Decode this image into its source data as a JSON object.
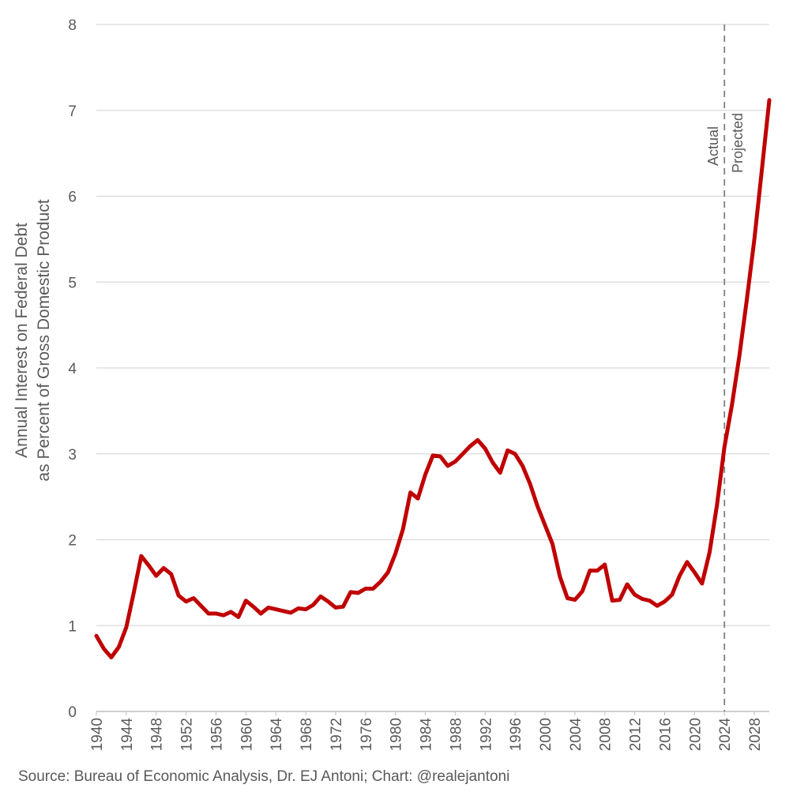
{
  "chart_data": {
    "type": "line",
    "ylabel_line1": "Annual Interest on Federal Debt",
    "ylabel_line2": "as Percent of Gross Domestic Product",
    "ylim": [
      0,
      8
    ],
    "xlim": [
      1940,
      2030
    ],
    "y_ticks": [
      "0",
      "1",
      "2",
      "3",
      "4",
      "5",
      "6",
      "7",
      "8"
    ],
    "x_ticks": [
      "1940",
      "1944",
      "1948",
      "1952",
      "1956",
      "1960",
      "1964",
      "1968",
      "1972",
      "1976",
      "1980",
      "1984",
      "1988",
      "1992",
      "1996",
      "2000",
      "2004",
      "2008",
      "2012",
      "2016",
      "2020",
      "2024",
      "2028"
    ],
    "grid": "horizontal",
    "divider": {
      "x": 2024,
      "left_label": "Actual",
      "right_label": "Projected"
    },
    "series": [
      {
        "color": "#c00000",
        "x": [
          1940,
          1941,
          1942,
          1943,
          1944,
          1945,
          1946,
          1947,
          1948,
          1949,
          1950,
          1951,
          1952,
          1953,
          1954,
          1955,
          1956,
          1957,
          1958,
          1959,
          1960,
          1961,
          1962,
          1963,
          1964,
          1965,
          1966,
          1967,
          1968,
          1969,
          1970,
          1971,
          1972,
          1973,
          1974,
          1975,
          1976,
          1977,
          1978,
          1979,
          1980,
          1981,
          1982,
          1983,
          1984,
          1985,
          1986,
          1987,
          1988,
          1989,
          1990,
          1991,
          1992,
          1993,
          1994,
          1995,
          1996,
          1997,
          1998,
          1999,
          2000,
          2001,
          2002,
          2003,
          2004,
          2005,
          2006,
          2007,
          2008,
          2009,
          2010,
          2011,
          2012,
          2013,
          2014,
          2015,
          2016,
          2017,
          2018,
          2019,
          2020,
          2021,
          2022,
          2023,
          2024,
          2025,
          2026,
          2027,
          2028,
          2029,
          2030
        ],
        "y": [
          0.88,
          0.73,
          0.63,
          0.75,
          0.98,
          1.38,
          1.81,
          1.7,
          1.58,
          1.67,
          1.6,
          1.35,
          1.28,
          1.32,
          1.23,
          1.14,
          1.14,
          1.12,
          1.16,
          1.1,
          1.29,
          1.22,
          1.14,
          1.21,
          1.19,
          1.17,
          1.15,
          1.2,
          1.19,
          1.24,
          1.34,
          1.28,
          1.21,
          1.22,
          1.39,
          1.38,
          1.43,
          1.43,
          1.51,
          1.62,
          1.84,
          2.12,
          2.55,
          2.48,
          2.76,
          2.98,
          2.97,
          2.86,
          2.91,
          3.0,
          3.09,
          3.16,
          3.06,
          2.9,
          2.78,
          3.04,
          3.0,
          2.86,
          2.65,
          2.39,
          2.17,
          1.95,
          1.57,
          1.32,
          1.3,
          1.4,
          1.64,
          1.64,
          1.71,
          1.29,
          1.3,
          1.48,
          1.36,
          1.31,
          1.29,
          1.23,
          1.28,
          1.36,
          1.58,
          1.74,
          1.62,
          1.49,
          1.85,
          2.4,
          3.08,
          3.57,
          4.14,
          4.8,
          5.5,
          6.3,
          7.12
        ]
      }
    ]
  },
  "footer": {
    "source": "Source: Bureau of Economic Analysis, Dr. EJ Antoni; Chart: @realejantoni"
  }
}
